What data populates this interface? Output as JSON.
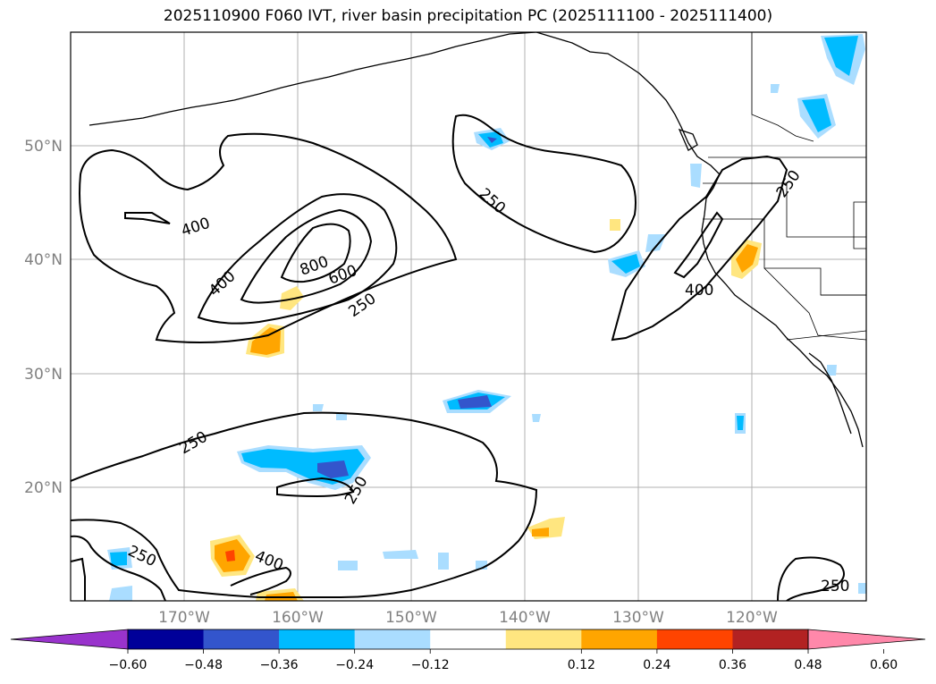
{
  "title": "2025110900 F060 IVT, river basin precipitation PC (2025111100 - 2025111400)",
  "map": {
    "lon_ticks": [
      "170°W",
      "160°W",
      "150°W",
      "140°W",
      "130°W",
      "120°W"
    ],
    "lat_ticks": [
      "50°N",
      "40°N",
      "30°N",
      "20°N"
    ],
    "grid": true
  },
  "contours": {
    "levels": [
      250,
      400,
      600,
      800
    ],
    "labels": [
      "400",
      "400",
      "800",
      "600",
      "250",
      "250",
      "250",
      "400",
      "250",
      "250",
      "250",
      "400",
      "250"
    ]
  },
  "colorbar": {
    "extend": "both",
    "ticks": [
      "−0.60",
      "−0.48",
      "−0.36",
      "−0.24",
      "−0.12",
      "0.12",
      "0.24",
      "0.36",
      "0.48",
      "0.60"
    ],
    "colors": [
      "#9933cc",
      "#000099",
      "#3355cc",
      "#00bbff",
      "#aaddff",
      "#ffffff",
      "#ffe680",
      "#ffa500",
      "#ff4400",
      "#b22222",
      "#ff88aa"
    ]
  }
}
